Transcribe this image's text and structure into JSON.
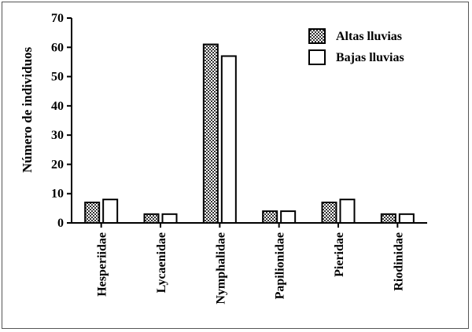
{
  "chart_data": {
    "type": "bar",
    "title": "",
    "xlabel": "",
    "ylabel": "Número de individuos",
    "ylim": [
      0,
      70
    ],
    "yticks": [
      0,
      10,
      20,
      30,
      40,
      50,
      60,
      70
    ],
    "categories": [
      "Hesperiidae",
      "Lycaenidae",
      "Nymphalidae",
      "Papilionidae",
      "Pieridae",
      "Riodinidae"
    ],
    "series": [
      {
        "name": "Altas lluvias",
        "values": [
          7,
          3,
          61,
          4,
          7,
          3
        ],
        "fill": "crosshatch"
      },
      {
        "name": "Bajas lluvias",
        "values": [
          8,
          3,
          57,
          4,
          8,
          3
        ],
        "fill": "#ffffff"
      }
    ],
    "legend": "top-right",
    "grid": false
  }
}
